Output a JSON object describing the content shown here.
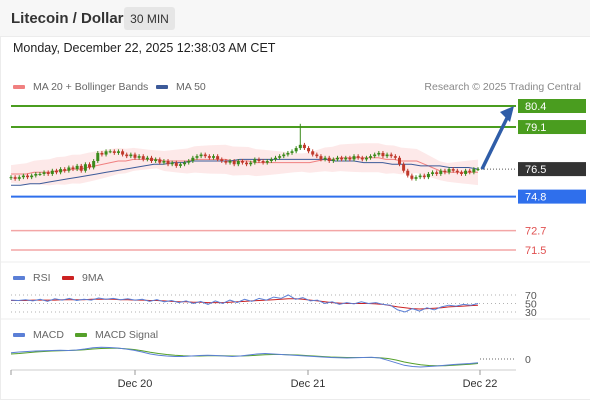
{
  "header": {
    "instrument": "Litecoin / Dollar",
    "timeframe": "30 MIN",
    "timestamp": "Monday, December 22, 2025 12:38:03 AM CET"
  },
  "legend": {
    "ma20_label": "MA 20 + Bollinger Bands",
    "ma50_label": "MA 50",
    "credit": "Research © 2025 Trading Central",
    "rsi_label": "RSI",
    "rsi_ma_label": "9MA",
    "macd_label": "MACD",
    "macd_signal_label": "MACD Signal"
  },
  "colors": {
    "resistance": "#4a9d1f",
    "pivot": "#2f6fec",
    "support": "#e05050",
    "last_price": "#333333",
    "ma20": "#f08080",
    "ma50": "#3c5a99",
    "bollinger_fill": "#fde4e4",
    "candle_up": "#3a8a1a",
    "candle_down": "#c0392b",
    "rsi": "#5b7fd6",
    "rsi_ma": "#cc2222",
    "macd": "#5b7fd6",
    "macd_signal": "#55a02a",
    "arrow": "#2f5da8"
  },
  "chart_data": [
    {
      "type": "candlestick",
      "x_ticks": [
        "Dec 20",
        "Dec 21",
        "Dec 22"
      ],
      "ylim": [
        71.0,
        81.5
      ],
      "levels": [
        {
          "value": 80.4,
          "label": "80.4",
          "kind": "resistance"
        },
        {
          "value": 79.1,
          "label": "79.1",
          "kind": "resistance"
        },
        {
          "value": 76.5,
          "label": "76.5",
          "kind": "last_price"
        },
        {
          "value": 74.8,
          "label": "74.8",
          "kind": "pivot"
        },
        {
          "value": 72.7,
          "label": "72.7",
          "kind": "support"
        },
        {
          "value": 71.5,
          "label": "71.5",
          "kind": "support"
        }
      ],
      "close": [
        76.0,
        75.9,
        76.0,
        76.1,
        76.0,
        76.1,
        76.2,
        76.2,
        76.3,
        76.2,
        76.4,
        76.3,
        76.5,
        76.4,
        76.6,
        76.5,
        76.7,
        76.4,
        76.8,
        76.6,
        77.0,
        77.5,
        77.4,
        77.6,
        77.6,
        77.5,
        77.6,
        77.4,
        77.3,
        77.4,
        77.2,
        77.3,
        77.1,
        77.2,
        77.0,
        77.1,
        76.9,
        77.0,
        76.8,
        76.9,
        76.7,
        76.8,
        76.9,
        77.0,
        77.2,
        77.3,
        77.4,
        77.3,
        77.2,
        77.3,
        77.1,
        77.0,
        76.9,
        77.0,
        76.8,
        77.0,
        76.9,
        76.8,
        76.9,
        77.1,
        77.0,
        76.9,
        77.0,
        77.1,
        77.2,
        77.3,
        77.4,
        77.5,
        77.6,
        77.8,
        78.0,
        77.8,
        77.6,
        77.4,
        77.3,
        77.1,
        77.2,
        77.0,
        77.1,
        77.2,
        77.1,
        77.2,
        77.1,
        77.3,
        77.2,
        77.1,
        77.2,
        77.3,
        77.4,
        77.5,
        77.3,
        77.4,
        77.3,
        77.2,
        76.8,
        76.4,
        76.1,
        75.9,
        76.0,
        76.1,
        76.0,
        76.2,
        76.3,
        76.2,
        76.4,
        76.3,
        76.5,
        76.4,
        76.3,
        76.2,
        76.4,
        76.3,
        76.5,
        76.5
      ],
      "high_spike": {
        "index": 70,
        "value": 79.3
      },
      "low_spike": {
        "index": 97,
        "value": 75.8
      },
      "forecast_target": 80.4,
      "ma20": [
        76.2,
        76.2,
        76.2,
        76.3,
        76.3,
        76.3,
        76.4,
        76.4,
        76.5,
        76.5,
        76.6,
        76.7,
        76.8,
        76.9,
        77.0,
        77.0,
        77.1,
        77.1,
        77.1,
        77.1,
        77.0,
        77.0,
        77.0,
        77.0,
        77.1,
        77.1,
        77.1,
        77.1,
        77.1,
        77.0,
        77.0,
        77.0,
        76.9,
        76.9,
        76.9,
        76.9,
        76.9,
        76.9,
        76.9,
        76.9,
        77.0,
        77.1,
        77.1,
        77.2,
        77.2,
        77.2,
        77.2,
        77.2,
        77.2,
        77.1,
        77.1,
        77.0,
        77.0,
        77.0,
        76.8,
        76.6,
        76.4,
        76.3,
        76.3,
        76.3,
        76.3,
        76.3
      ],
      "ma50": [
        75.5,
        75.5,
        75.6,
        75.6,
        75.7,
        75.8,
        75.9,
        76.0,
        76.1,
        76.2,
        76.3,
        76.4,
        76.5,
        76.6,
        76.7,
        76.8,
        76.8,
        76.9,
        76.9,
        77.0,
        77.0,
        77.0,
        77.0,
        77.0,
        77.1,
        77.1,
        77.1,
        77.1,
        77.1,
        77.1,
        77.1,
        77.1,
        77.1,
        77.1,
        77.0,
        77.0,
        77.0,
        76.9,
        76.9,
        76.9,
        76.8,
        76.8,
        76.8,
        76.7,
        76.7,
        76.7,
        76.6,
        76.6,
        76.6,
        76.5
      ]
    },
    {
      "type": "line",
      "name": "RSI",
      "y_ticks": [
        "70",
        "50",
        "30"
      ],
      "ylim": [
        20,
        80
      ],
      "rsi": [
        58,
        57,
        59,
        56,
        60,
        55,
        61,
        58,
        62,
        57,
        60,
        58,
        63,
        60,
        62,
        59,
        61,
        58,
        60,
        55,
        59,
        54,
        57,
        52,
        56,
        50,
        55,
        48,
        56,
        50,
        58,
        52,
        60,
        55,
        62,
        58,
        65,
        62,
        70,
        60,
        64,
        56,
        58,
        50,
        54,
        48,
        52,
        49,
        54,
        50,
        52,
        48,
        46,
        35,
        30,
        38,
        32,
        40,
        35,
        42,
        46,
        44,
        48,
        46,
        50
      ],
      "rsi_ma": [
        57,
        57,
        57,
        58,
        58,
        58,
        58,
        59,
        59,
        59,
        59,
        60,
        60,
        60,
        60,
        59,
        59,
        58,
        58,
        57,
        57,
        56,
        55,
        54,
        54,
        53,
        53,
        52,
        52,
        52,
        53,
        54,
        55,
        56,
        57,
        58,
        59,
        60,
        61,
        61,
        60,
        58,
        56,
        54,
        52,
        51,
        50,
        50,
        50,
        50,
        49,
        48,
        45,
        42,
        40,
        38,
        37,
        38,
        39,
        40,
        42,
        43,
        44,
        45,
        46
      ]
    },
    {
      "type": "line",
      "name": "MACD",
      "y_ticks": [
        "0"
      ],
      "ylim": [
        -0.6,
        0.6
      ],
      "macd": [
        0.25,
        0.28,
        0.3,
        0.32,
        0.33,
        0.34,
        0.35,
        0.34,
        0.36,
        0.4,
        0.45,
        0.47,
        0.46,
        0.44,
        0.4,
        0.35,
        0.28,
        0.2,
        0.15,
        0.12,
        0.1,
        0.1,
        0.12,
        0.14,
        0.15,
        0.14,
        0.12,
        0.1,
        0.12,
        0.16,
        0.2,
        0.22,
        0.2,
        0.18,
        0.16,
        0.14,
        0.12,
        0.1,
        0.08,
        0.06,
        0.05,
        0.04,
        0.05,
        0.06,
        0.07,
        0.04,
        -0.05,
        -0.15,
        -0.25,
        -0.3,
        -0.32,
        -0.3,
        -0.28,
        -0.25,
        -0.22,
        -0.2,
        -0.18,
        -0.15
      ],
      "macd_signal": [
        0.2,
        0.22,
        0.25,
        0.28,
        0.3,
        0.32,
        0.33,
        0.34,
        0.35,
        0.37,
        0.4,
        0.42,
        0.43,
        0.43,
        0.41,
        0.38,
        0.33,
        0.27,
        0.22,
        0.18,
        0.15,
        0.13,
        0.12,
        0.12,
        0.13,
        0.13,
        0.13,
        0.12,
        0.12,
        0.13,
        0.15,
        0.17,
        0.18,
        0.18,
        0.17,
        0.16,
        0.14,
        0.12,
        0.1,
        0.08,
        0.07,
        0.06,
        0.06,
        0.06,
        0.06,
        0.05,
        0.02,
        -0.04,
        -0.12,
        -0.18,
        -0.23,
        -0.26,
        -0.27,
        -0.27,
        -0.25,
        -0.23,
        -0.21,
        -0.18
      ]
    }
  ]
}
